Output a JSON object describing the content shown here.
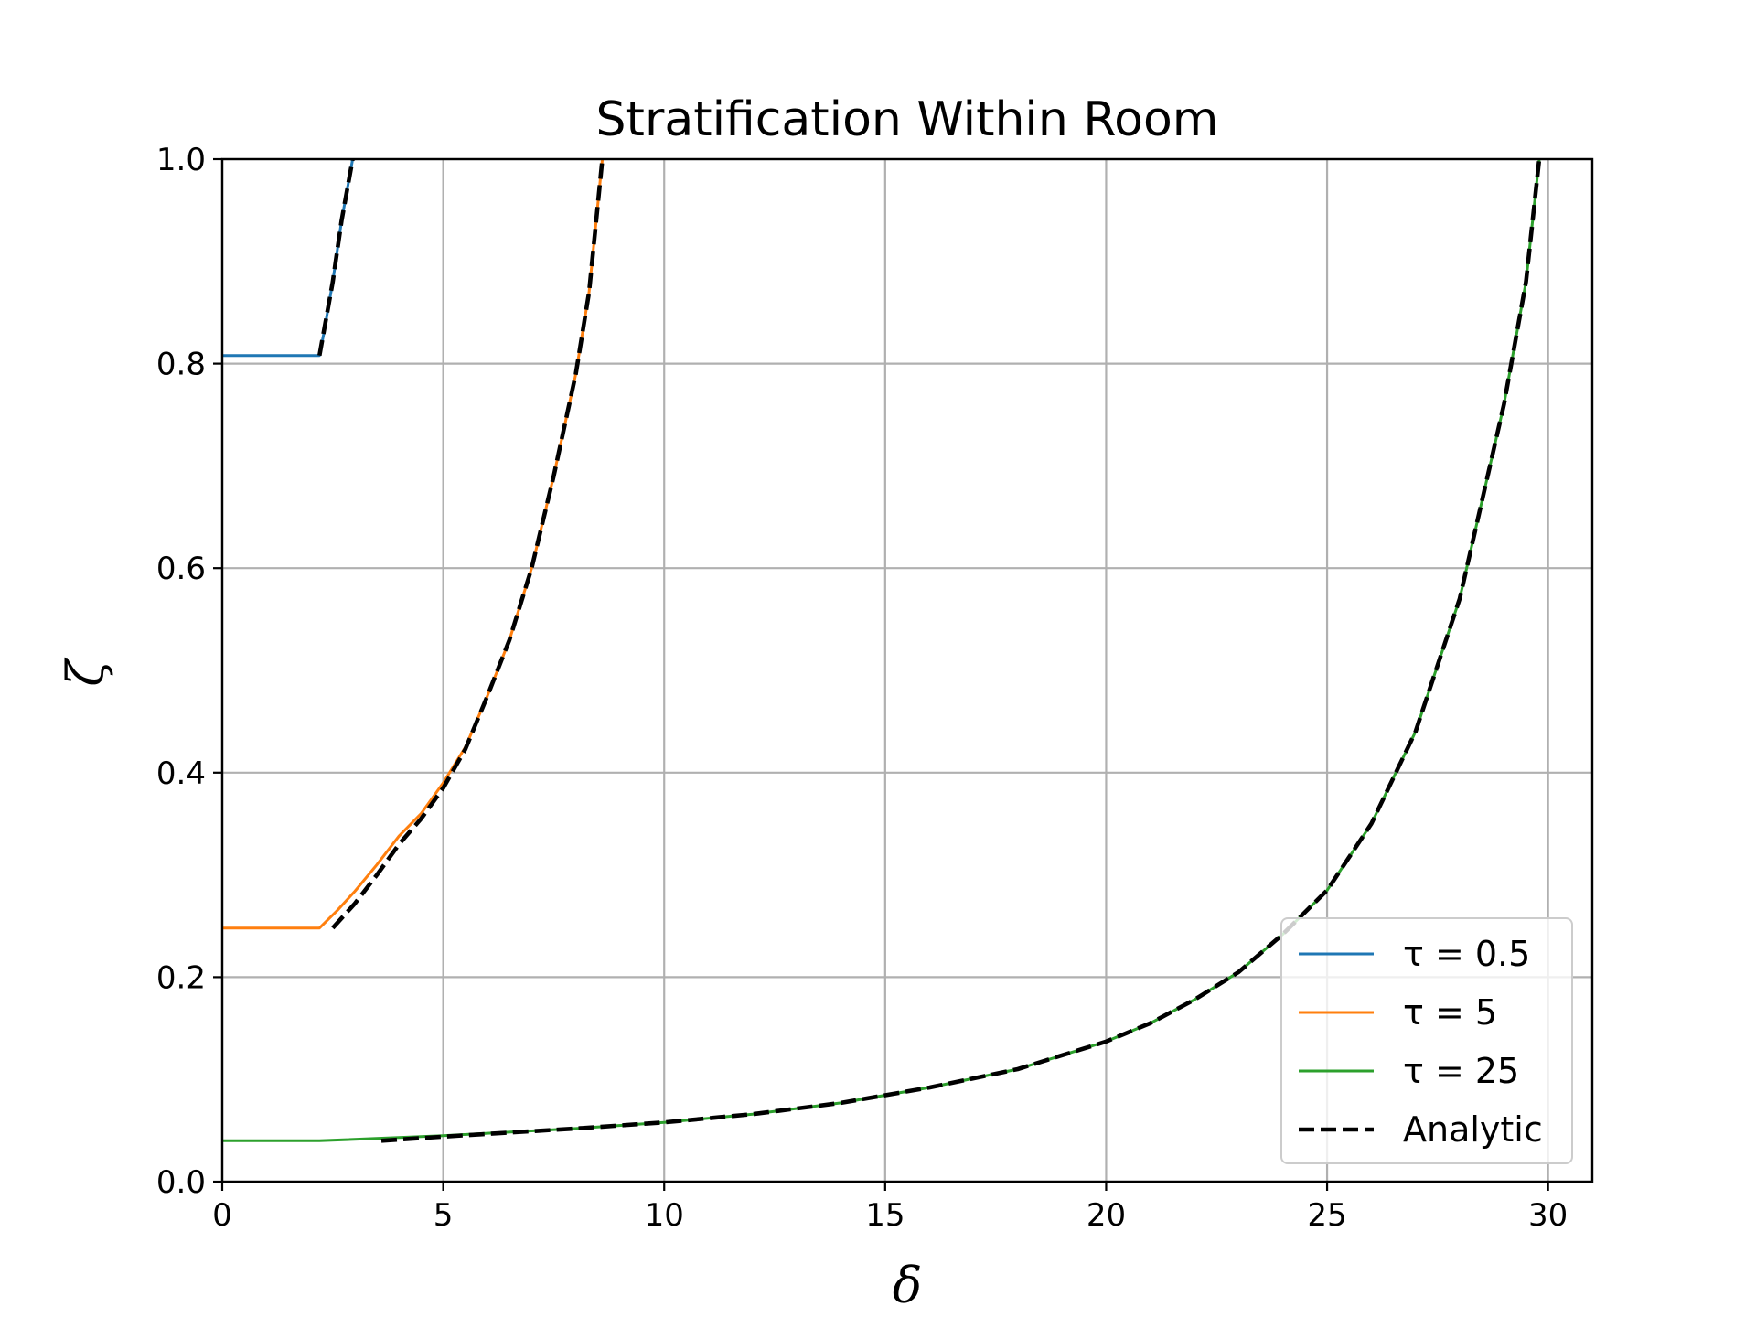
{
  "chart_data": {
    "type": "line",
    "title": "Stratification Within Room",
    "xlabel": "δ",
    "ylabel": "ζ",
    "xlim": [
      0,
      31
    ],
    "ylim": [
      0,
      1.0
    ],
    "xticks": [
      0,
      5,
      10,
      15,
      20,
      25,
      30
    ],
    "yticks": [
      0.0,
      0.2,
      0.4,
      0.6,
      0.8,
      1.0
    ],
    "xtick_labels": [
      "0",
      "5",
      "10",
      "15",
      "20",
      "25",
      "30"
    ],
    "ytick_labels": [
      "0.0",
      "0.2",
      "0.4",
      "0.6",
      "0.8",
      "1.0"
    ],
    "grid": true,
    "legend_position": "lower-right",
    "series": [
      {
        "name": "τ = 0.5",
        "color": "#1f77b4",
        "style": "solid",
        "points": [
          [
            0,
            0.808
          ],
          [
            2.2,
            0.808
          ],
          [
            2.3,
            0.83
          ],
          [
            2.5,
            0.88
          ],
          [
            2.7,
            0.94
          ],
          [
            2.95,
            1.0
          ]
        ]
      },
      {
        "name": "τ = 5",
        "color": "#ff7f0e",
        "style": "solid",
        "points": [
          [
            0,
            0.248
          ],
          [
            2.2,
            0.248
          ],
          [
            2.6,
            0.265
          ],
          [
            3,
            0.284
          ],
          [
            3.5,
            0.31
          ],
          [
            4,
            0.338
          ],
          [
            4.5,
            0.36
          ],
          [
            5,
            0.39
          ],
          [
            5.5,
            0.425
          ],
          [
            6,
            0.475
          ],
          [
            6.5,
            0.53
          ],
          [
            7,
            0.6
          ],
          [
            7.5,
            0.69
          ],
          [
            8,
            0.79
          ],
          [
            8.3,
            0.87
          ],
          [
            8.6,
            1.0
          ]
        ]
      },
      {
        "name": "τ = 25",
        "color": "#2ca02c",
        "style": "solid",
        "points": [
          [
            0,
            0.04
          ],
          [
            2.2,
            0.04
          ],
          [
            5,
            0.045
          ],
          [
            8,
            0.052
          ],
          [
            10,
            0.058
          ],
          [
            12,
            0.066
          ],
          [
            14,
            0.077
          ],
          [
            16,
            0.092
          ],
          [
            18,
            0.11
          ],
          [
            20,
            0.137
          ],
          [
            21,
            0.155
          ],
          [
            22,
            0.178
          ],
          [
            23,
            0.205
          ],
          [
            24,
            0.242
          ],
          [
            25,
            0.285
          ],
          [
            26,
            0.35
          ],
          [
            27,
            0.44
          ],
          [
            28,
            0.57
          ],
          [
            29,
            0.76
          ],
          [
            29.5,
            0.88
          ],
          [
            29.8,
            1.0
          ]
        ]
      },
      {
        "name": "Analytic",
        "color": "#000000",
        "style": "dashed",
        "segments": [
          [
            [
              2.2,
              0.808
            ],
            [
              2.5,
              0.88
            ],
            [
              2.7,
              0.94
            ],
            [
              2.95,
              1.0
            ]
          ],
          [
            [
              2.5,
              0.248
            ],
            [
              3,
              0.272
            ],
            [
              3.5,
              0.3
            ],
            [
              4,
              0.33
            ],
            [
              4.5,
              0.355
            ],
            [
              5,
              0.385
            ],
            [
              5.5,
              0.423
            ],
            [
              6,
              0.475
            ],
            [
              6.5,
              0.53
            ],
            [
              7,
              0.6
            ],
            [
              7.5,
              0.69
            ],
            [
              8,
              0.79
            ],
            [
              8.3,
              0.87
            ],
            [
              8.6,
              1.0
            ]
          ],
          [
            [
              3.6,
              0.04
            ],
            [
              5,
              0.044
            ],
            [
              8,
              0.052
            ],
            [
              10,
              0.058
            ],
            [
              12,
              0.066
            ],
            [
              14,
              0.077
            ],
            [
              16,
              0.092
            ],
            [
              18,
              0.11
            ],
            [
              20,
              0.137
            ],
            [
              21,
              0.155
            ],
            [
              22,
              0.178
            ],
            [
              23,
              0.205
            ],
            [
              24,
              0.242
            ],
            [
              25,
              0.285
            ],
            [
              26,
              0.35
            ],
            [
              27,
              0.44
            ],
            [
              28,
              0.57
            ],
            [
              29,
              0.76
            ],
            [
              29.5,
              0.88
            ],
            [
              29.8,
              1.0
            ]
          ]
        ]
      }
    ]
  }
}
